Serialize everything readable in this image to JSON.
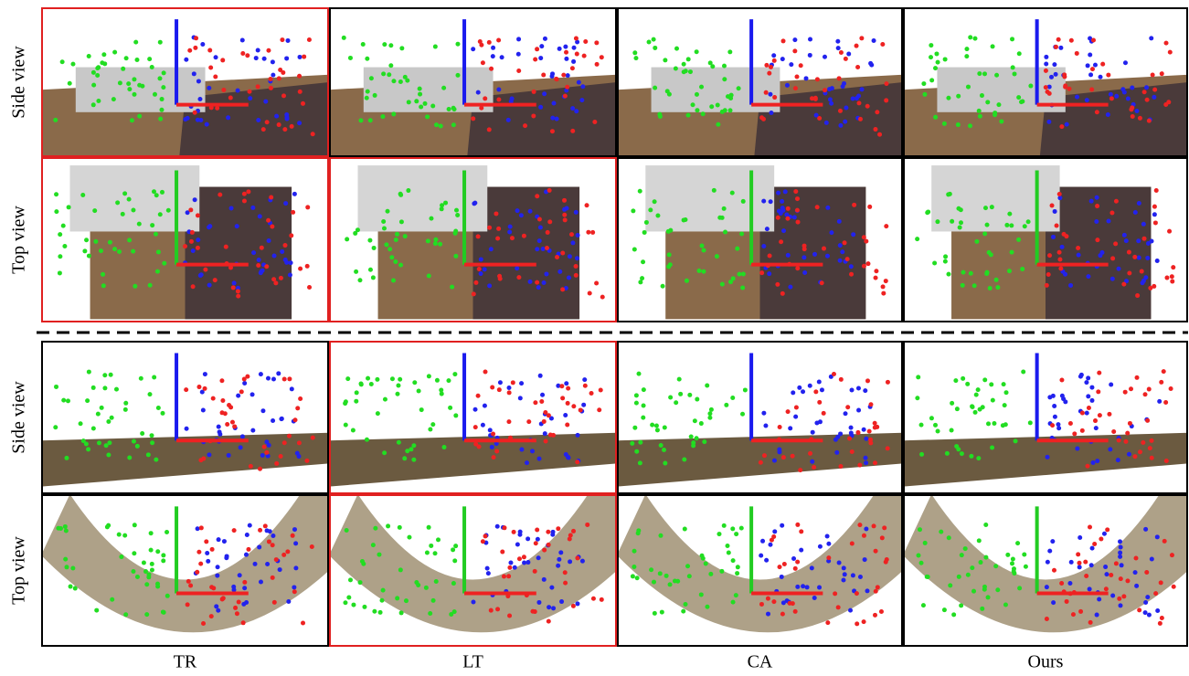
{
  "row_labels": [
    "Side view",
    "Top view",
    "Side view",
    "Top view"
  ],
  "columns": [
    "TR",
    "LT",
    "CA",
    "Ours"
  ]
}
